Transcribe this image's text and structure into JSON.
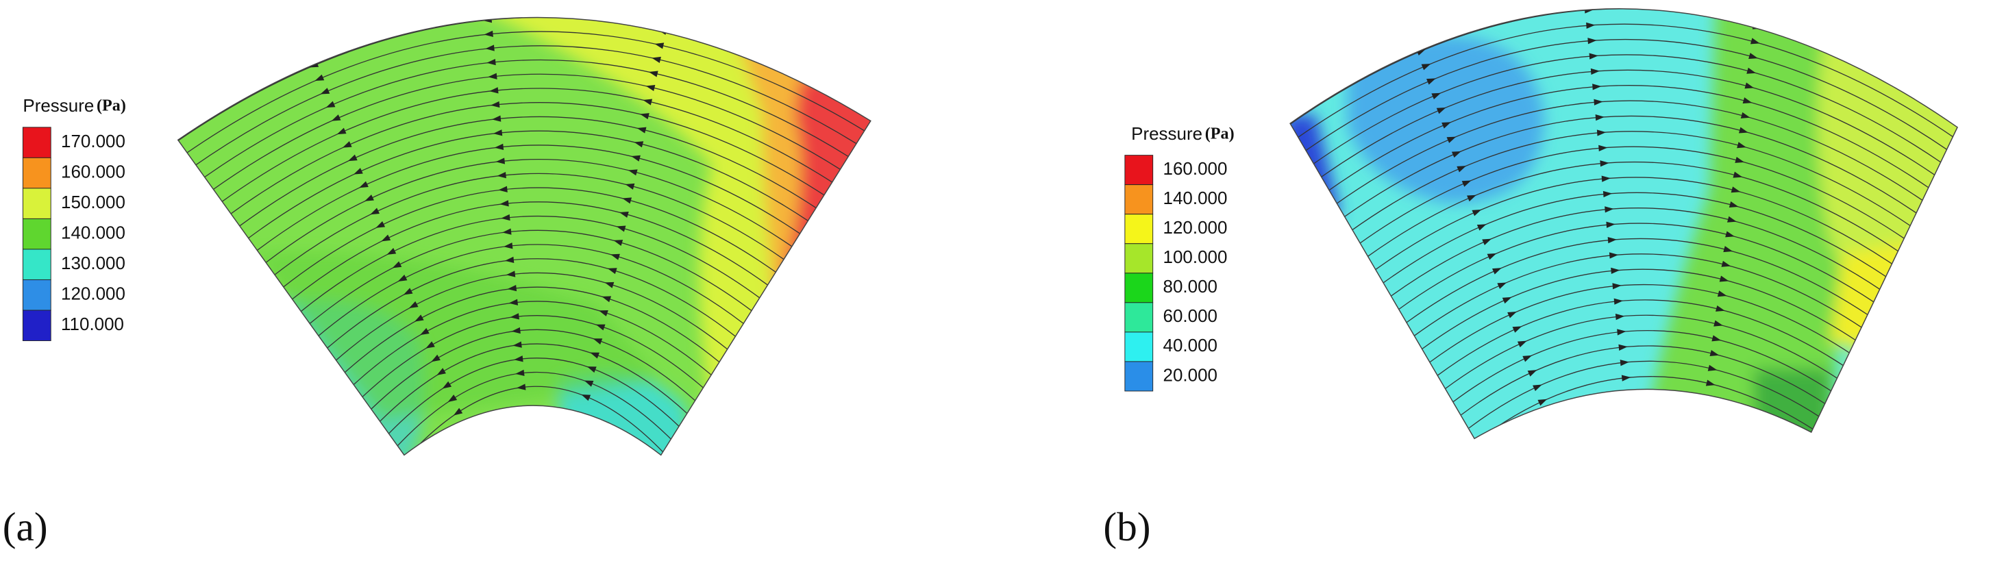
{
  "panels": [
    {
      "label": "(a)",
      "legend": {
        "title": "Pressure",
        "unit": "(Pa)",
        "levels": [
          {
            "label": "170.000",
            "color": "#e8141c"
          },
          {
            "label": "160.000",
            "color": "#f7931e"
          },
          {
            "label": "150.000",
            "color": "#d9f23a"
          },
          {
            "label": "140.000",
            "color": "#5fd62f"
          },
          {
            "label": "130.000",
            "color": "#35e6c8"
          },
          {
            "label": "120.000",
            "color": "#2e8ee6"
          },
          {
            "label": "110.000",
            "color": "#2020c8"
          }
        ]
      }
    },
    {
      "label": "(b)",
      "legend": {
        "title": "Pressure",
        "unit": "(Pa)",
        "levels": [
          {
            "label": "160.000",
            "color": "#e8141c"
          },
          {
            "label": "140.000",
            "color": "#f7931e"
          },
          {
            "label": "120.000",
            "color": "#f5f51a"
          },
          {
            "label": "100.000",
            "color": "#a6e62a"
          },
          {
            "label": "80.000",
            "color": "#1bd61b"
          },
          {
            "label": "60.000",
            "color": "#2ee89a"
          },
          {
            "label": "40.000",
            "color": "#2ef0f0"
          },
          {
            "label": "20.000",
            "color": "#2a8ee8"
          }
        ]
      }
    }
  ]
}
